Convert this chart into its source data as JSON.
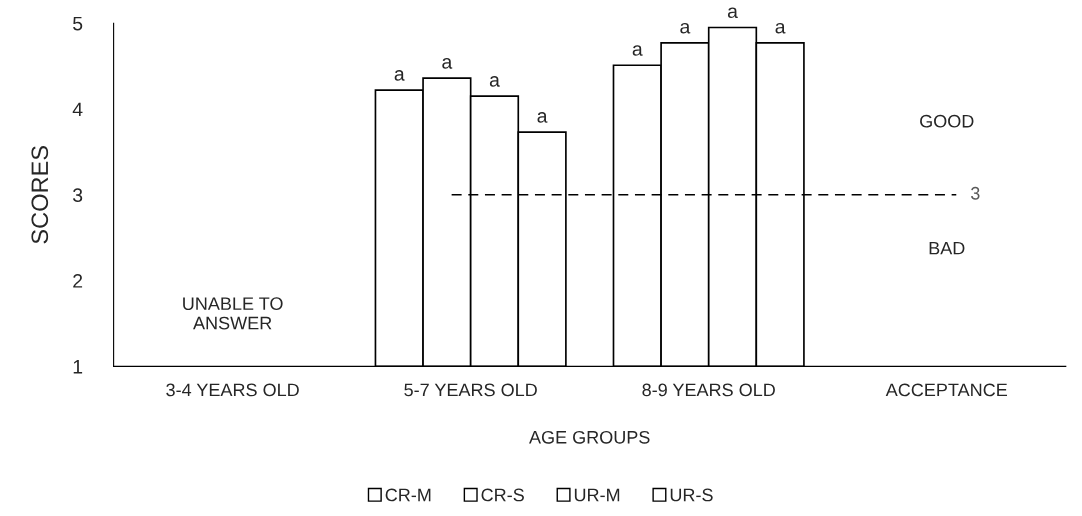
{
  "chart_data": {
    "type": "bar",
    "xlabel": "AGE GROUPS",
    "ylabel": "SCORES",
    "categories": [
      "3-4 YEARS OLD",
      "5-7 YEARS OLD",
      "8-9 YEARS OLD",
      "ACCEPTANCE"
    ],
    "series": [
      {
        "name": "CR-M",
        "color": "#ffffff",
        "values": [
          null,
          4.22,
          4.51,
          null
        ],
        "value_labels": [
          null,
          "a",
          "a",
          null
        ]
      },
      {
        "name": "CR-S",
        "color": "#ffffff",
        "values": [
          null,
          4.36,
          4.77,
          null
        ],
        "value_labels": [
          null,
          "a",
          "a",
          null
        ]
      },
      {
        "name": "UR-M",
        "color": "#ffffff",
        "values": [
          null,
          4.15,
          4.95,
          null
        ],
        "value_labels": [
          null,
          "a",
          "a",
          null
        ]
      },
      {
        "name": "UR-S",
        "color": "#ffffff",
        "values": [
          null,
          3.73,
          4.77,
          null
        ],
        "value_labels": [
          null,
          "a",
          "a",
          null
        ]
      }
    ],
    "ylim": [
      1,
      5
    ],
    "yticks": [
      1,
      2,
      3,
      4,
      5
    ],
    "ref_lines": [
      {
        "axis": "y",
        "value": 3,
        "label": "3",
        "color": "#000000",
        "line_style": "dashed"
      }
    ],
    "annotations": [
      "UNABLE TO\nANSWER",
      "GOOD",
      "BAD"
    ],
    "legend": "bottom",
    "grid": false
  }
}
